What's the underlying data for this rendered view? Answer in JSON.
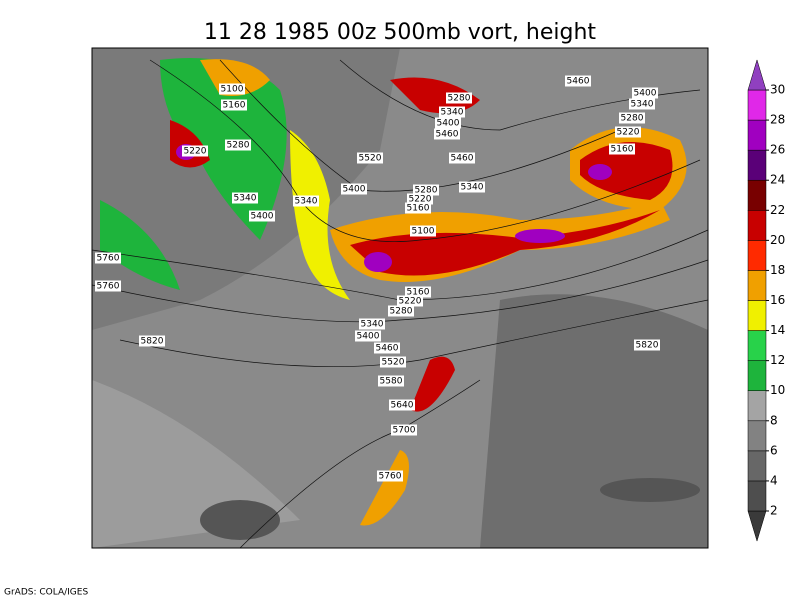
{
  "title": "11 28 1985 00z 500mb vort, height",
  "footer": "GrADS: COLA/IGES",
  "contour_labels": [
    5100,
    5160,
    5220,
    5280,
    5340,
    5400,
    5340,
    5280,
    5340,
    5400,
    5460,
    5520,
    5460,
    5400,
    5280,
    5340,
    5220,
    5160,
    5100,
    5460,
    5400,
    5340,
    5280,
    5220,
    5160,
    5760,
    5760,
    5820,
    5160,
    5220,
    5280,
    5340,
    5400,
    5460,
    5520,
    5580,
    5640,
    5700,
    5760,
    5820
  ],
  "colorbar": {
    "ticks": [
      2,
      4,
      6,
      8,
      10,
      12,
      14,
      16,
      18,
      20,
      22,
      24,
      26,
      28,
      30
    ],
    "colors": [
      "#3a3a3a",
      "#4e4e4e",
      "#676767",
      "#828282",
      "#a4a4a4",
      "#1eb43c",
      "#28d24a",
      "#f0f000",
      "#f0a000",
      "#ff2a00",
      "#c80000",
      "#780000",
      "#5a0078",
      "#a000c0",
      "#e028e8",
      "#9040c0"
    ]
  }
}
